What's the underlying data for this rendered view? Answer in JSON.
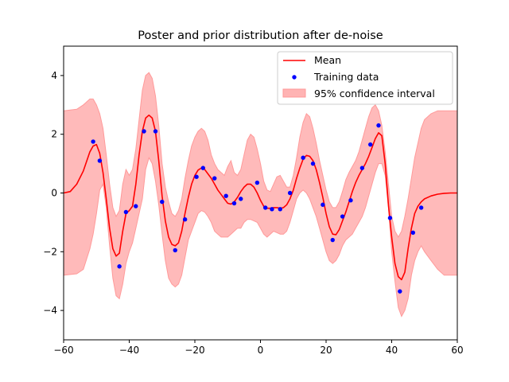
{
  "chart_data": {
    "type": "line",
    "title": "Poster and prior distribution after de-noise",
    "xlabel": "",
    "ylabel": "",
    "xlim": [
      -60,
      60
    ],
    "ylim": [
      -5,
      5
    ],
    "xticks": [
      -60,
      -40,
      -20,
      0,
      20,
      40,
      60
    ],
    "yticks": [
      -4,
      -2,
      0,
      2,
      4
    ],
    "xtick_labels": [
      "−60",
      "−40",
      "−20",
      "0",
      "20",
      "40",
      "60"
    ],
    "ytick_labels": [
      "−4",
      "−2",
      "0",
      "2",
      "4"
    ],
    "grid": false,
    "legend_position": "top-right",
    "legend": [
      "Mean",
      "Training data",
      "95% confidence interval"
    ],
    "colors": {
      "mean": "#ff0000",
      "training": "#0000ff",
      "interval_fill": "#ffb3b3",
      "interval_edge": "#ff9a9a"
    },
    "series": [
      {
        "name": "Mean",
        "x": [
          -60,
          -58,
          -56,
          -54,
          -52,
          -51,
          -50,
          -49,
          -48,
          -47,
          -46,
          -45,
          -44,
          -43,
          -42,
          -41,
          -40,
          -39,
          -38,
          -37,
          -36,
          -35,
          -34,
          -33,
          -32,
          -31,
          -30,
          -29,
          -28,
          -27,
          -26,
          -25,
          -24,
          -23,
          -22,
          -21,
          -20,
          -19,
          -18,
          -17,
          -16,
          -15,
          -14,
          -13,
          -12,
          -11,
          -10,
          -9,
          -8,
          -7,
          -6,
          -5,
          -4,
          -3,
          -2,
          -1,
          0,
          1,
          2,
          3,
          4,
          5,
          6,
          7,
          8,
          9,
          10,
          11,
          12,
          13,
          14,
          15,
          16,
          17,
          18,
          19,
          20,
          21,
          22,
          23,
          24,
          25,
          26,
          27,
          28,
          29,
          30,
          31,
          32,
          33,
          34,
          35,
          36,
          37,
          38,
          39,
          40,
          41,
          42,
          43,
          44,
          45,
          46,
          47,
          48,
          49,
          50,
          52,
          54,
          56,
          58,
          60
        ],
        "y": [
          0.0,
          0.05,
          0.3,
          0.75,
          1.4,
          1.6,
          1.65,
          1.35,
          0.7,
          -0.2,
          -1.2,
          -1.9,
          -2.15,
          -2.05,
          -1.3,
          -0.7,
          -0.6,
          -0.45,
          0.3,
          1.3,
          2.1,
          2.55,
          2.65,
          2.55,
          2.1,
          1.1,
          -0.1,
          -0.95,
          -1.5,
          -1.75,
          -1.8,
          -1.7,
          -1.3,
          -0.7,
          -0.15,
          0.3,
          0.6,
          0.78,
          0.85,
          0.8,
          0.65,
          0.5,
          0.3,
          0.1,
          -0.05,
          -0.2,
          -0.35,
          -0.38,
          -0.3,
          -0.15,
          0.05,
          0.2,
          0.3,
          0.3,
          0.2,
          0.0,
          -0.25,
          -0.45,
          -0.52,
          -0.52,
          -0.5,
          -0.5,
          -0.52,
          -0.5,
          -0.4,
          -0.2,
          0.1,
          0.5,
          0.85,
          1.15,
          1.28,
          1.25,
          1.1,
          0.8,
          0.35,
          -0.15,
          -0.7,
          -1.15,
          -1.4,
          -1.42,
          -1.25,
          -0.95,
          -0.65,
          -0.3,
          0.05,
          0.35,
          0.6,
          0.8,
          1.0,
          1.25,
          1.55,
          1.85,
          2.05,
          1.95,
          1.0,
          -0.4,
          -1.5,
          -2.4,
          -2.85,
          -2.95,
          -2.7,
          -1.9,
          -1.2,
          -0.7,
          -0.45,
          -0.3,
          -0.2,
          -0.1,
          -0.04,
          -0.01,
          0.0,
          0.0
        ]
      },
      {
        "name": "Training data",
        "x": [
          -51,
          -49,
          -43,
          -41,
          -38,
          -35.5,
          -32,
          -30,
          -26,
          -23,
          -19.5,
          -17.5,
          -14,
          -10.5,
          -8,
          -6,
          -1,
          1.5,
          3.5,
          6,
          9,
          13,
          16,
          19,
          22,
          25,
          27.5,
          31,
          33.5,
          36,
          39.5,
          42.5,
          46.5,
          49
        ],
        "y": [
          1.75,
          1.1,
          -2.5,
          -0.65,
          -0.45,
          2.1,
          2.1,
          -0.3,
          -1.95,
          -0.9,
          0.55,
          0.85,
          0.5,
          -0.1,
          -0.35,
          -0.2,
          0.35,
          -0.5,
          -0.55,
          -0.55,
          0.0,
          1.2,
          1.0,
          -0.4,
          -1.6,
          -0.8,
          -0.25,
          0.85,
          1.65,
          2.3,
          -0.85,
          -3.35,
          -1.35,
          -0.5
        ]
      }
    ],
    "confidence_interval": {
      "name": "95% confidence interval",
      "x": [
        -60,
        -56,
        -54,
        -52,
        -51,
        -50,
        -49,
        -48,
        -47,
        -46,
        -45,
        -44,
        -43,
        -42,
        -41,
        -40,
        -39,
        -38,
        -37,
        -36,
        -35,
        -34,
        -33,
        -32,
        -31,
        -30,
        -29,
        -28,
        -27,
        -26,
        -25,
        -24,
        -23,
        -22,
        -21,
        -20,
        -19,
        -18,
        -17,
        -16,
        -15,
        -14,
        -13,
        -12,
        -11,
        -10,
        -9,
        -8,
        -7,
        -6,
        -5,
        -4,
        -3,
        -2,
        -1,
        0,
        1,
        2,
        3,
        4,
        5,
        6,
        7,
        8,
        9,
        10,
        11,
        12,
        13,
        14,
        15,
        16,
        17,
        18,
        19,
        20,
        21,
        22,
        23,
        24,
        25,
        26,
        27,
        28,
        29,
        30,
        31,
        32,
        33,
        34,
        35,
        36,
        37,
        38,
        39,
        40,
        41,
        42,
        43,
        44,
        45,
        46,
        47,
        48,
        49,
        50,
        52,
        54,
        56,
        58,
        60
      ],
      "upper": [
        2.8,
        2.85,
        3.0,
        3.2,
        3.2,
        3.0,
        2.7,
        2.2,
        1.3,
        0.3,
        -0.5,
        -0.8,
        -0.6,
        0.3,
        0.8,
        0.6,
        0.8,
        1.5,
        2.5,
        3.5,
        4.0,
        4.1,
        3.9,
        3.3,
        2.3,
        1.0,
        0.2,
        -0.3,
        -0.7,
        -0.8,
        -0.6,
        -0.2,
        0.5,
        1.1,
        1.6,
        1.9,
        2.1,
        2.2,
        2.1,
        1.8,
        1.3,
        1.0,
        0.8,
        0.7,
        0.6,
        0.9,
        1.1,
        0.7,
        0.6,
        0.8,
        1.3,
        1.8,
        2.0,
        1.9,
        1.5,
        1.0,
        0.4,
        0.1,
        0.05,
        0.3,
        0.55,
        0.6,
        0.4,
        0.2,
        0.2,
        0.6,
        1.2,
        1.9,
        2.4,
        2.7,
        2.6,
        2.2,
        1.7,
        1.1,
        0.6,
        0.1,
        -0.3,
        -0.5,
        -0.5,
        -0.3,
        0.05,
        0.45,
        0.7,
        0.9,
        1.1,
        1.4,
        1.8,
        2.2,
        2.6,
        2.9,
        3.0,
        2.8,
        2.3,
        1.4,
        0.3,
        -0.8,
        -1.3,
        -1.5,
        -1.3,
        -0.8,
        -0.2,
        0.5,
        1.2,
        1.7,
        2.2,
        2.5,
        2.7,
        2.8,
        2.8,
        2.8,
        2.8
      ],
      "lower": [
        -2.8,
        -2.75,
        -2.6,
        -1.9,
        -1.4,
        -0.7,
        0.1,
        0.3,
        -0.5,
        -1.8,
        -2.9,
        -3.5,
        -3.6,
        -3.1,
        -2.4,
        -2.0,
        -1.7,
        -1.2,
        -0.7,
        -0.2,
        0.8,
        1.2,
        1.0,
        0.4,
        -0.4,
        -1.4,
        -2.3,
        -2.9,
        -3.1,
        -3.2,
        -3.1,
        -2.8,
        -2.2,
        -1.6,
        -1.3,
        -1.0,
        -0.7,
        -0.6,
        -0.65,
        -0.8,
        -1.0,
        -1.3,
        -1.4,
        -1.5,
        -1.5,
        -1.5,
        -1.4,
        -1.3,
        -1.2,
        -1.2,
        -1.0,
        -0.9,
        -0.9,
        -0.95,
        -1.0,
        -1.2,
        -1.4,
        -1.5,
        -1.4,
        -1.3,
        -1.35,
        -1.4,
        -1.4,
        -1.3,
        -1.0,
        -0.6,
        -0.2,
        0.0,
        0.1,
        0.0,
        -0.2,
        -0.5,
        -0.8,
        -1.2,
        -1.6,
        -2.0,
        -2.3,
        -2.4,
        -2.3,
        -2.1,
        -1.8,
        -1.6,
        -1.5,
        -1.4,
        -1.2,
        -1.0,
        -0.8,
        -0.5,
        -0.1,
        0.3,
        0.7,
        1.0,
        1.0,
        0.6,
        -0.5,
        -2.0,
        -3.0,
        -3.9,
        -4.2,
        -4.0,
        -3.6,
        -2.8,
        -2.3,
        -2.0,
        -1.8,
        -2.0,
        -2.3,
        -2.6,
        -2.8,
        -2.8,
        -2.8
      ]
    }
  }
}
